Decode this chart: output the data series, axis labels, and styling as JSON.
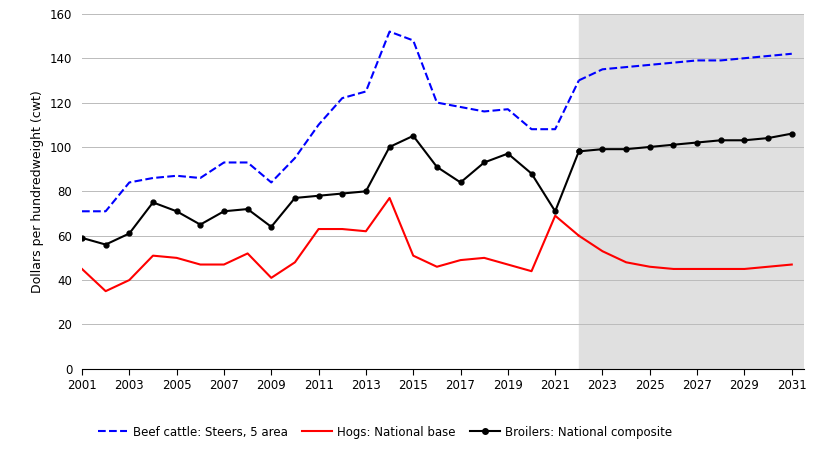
{
  "years_historical": [
    2001,
    2002,
    2003,
    2004,
    2005,
    2006,
    2007,
    2008,
    2009,
    2010,
    2011,
    2012,
    2013,
    2014,
    2015,
    2016,
    2017,
    2018,
    2019,
    2020,
    2021,
    2022
  ],
  "years_projected": [
    2022,
    2023,
    2024,
    2025,
    2026,
    2027,
    2028,
    2029,
    2030,
    2031
  ],
  "beef_hist": [
    71,
    71,
    84,
    86,
    87,
    86,
    93,
    93,
    84,
    95,
    110,
    122,
    125,
    152,
    148,
    120,
    118,
    116,
    117,
    108,
    108,
    130
  ],
  "beef_proj": [
    130,
    135,
    136,
    137,
    138,
    139,
    139,
    140,
    141,
    142
  ],
  "hogs_hist": [
    45,
    35,
    40,
    51,
    50,
    47,
    47,
    52,
    41,
    48,
    63,
    63,
    62,
    77,
    51,
    46,
    49,
    50,
    47,
    44,
    69,
    60
  ],
  "hogs_proj": [
    60,
    53,
    48,
    46,
    45,
    45,
    45,
    45,
    46,
    47
  ],
  "broilers_hist": [
    59,
    56,
    61,
    75,
    71,
    65,
    71,
    72,
    64,
    77,
    78,
    79,
    80,
    100,
    105,
    91,
    84,
    93,
    97,
    88,
    71,
    98
  ],
  "broilers_proj": [
    98,
    99,
    99,
    100,
    101,
    102,
    103,
    103,
    104,
    106
  ],
  "projection_start": 2022,
  "ylim": [
    0,
    160
  ],
  "yticks": [
    0,
    20,
    40,
    60,
    80,
    100,
    120,
    140,
    160
  ],
  "xticks": [
    2001,
    2003,
    2005,
    2007,
    2009,
    2011,
    2013,
    2015,
    2017,
    2019,
    2021,
    2023,
    2025,
    2027,
    2029,
    2031
  ],
  "ylabel": "Dollars per hundredweight (cwt)",
  "beef_color": "#0000FF",
  "hogs_color": "#FF0000",
  "broilers_color": "#000000",
  "shade_color": "#E0E0E0",
  "legend_labels": [
    "Beef cattle: Steers, 5 area",
    "Hogs: National base",
    "Broilers: National composite"
  ],
  "background_color": "#FFFFFF",
  "grid_color": "#BBBBBB"
}
